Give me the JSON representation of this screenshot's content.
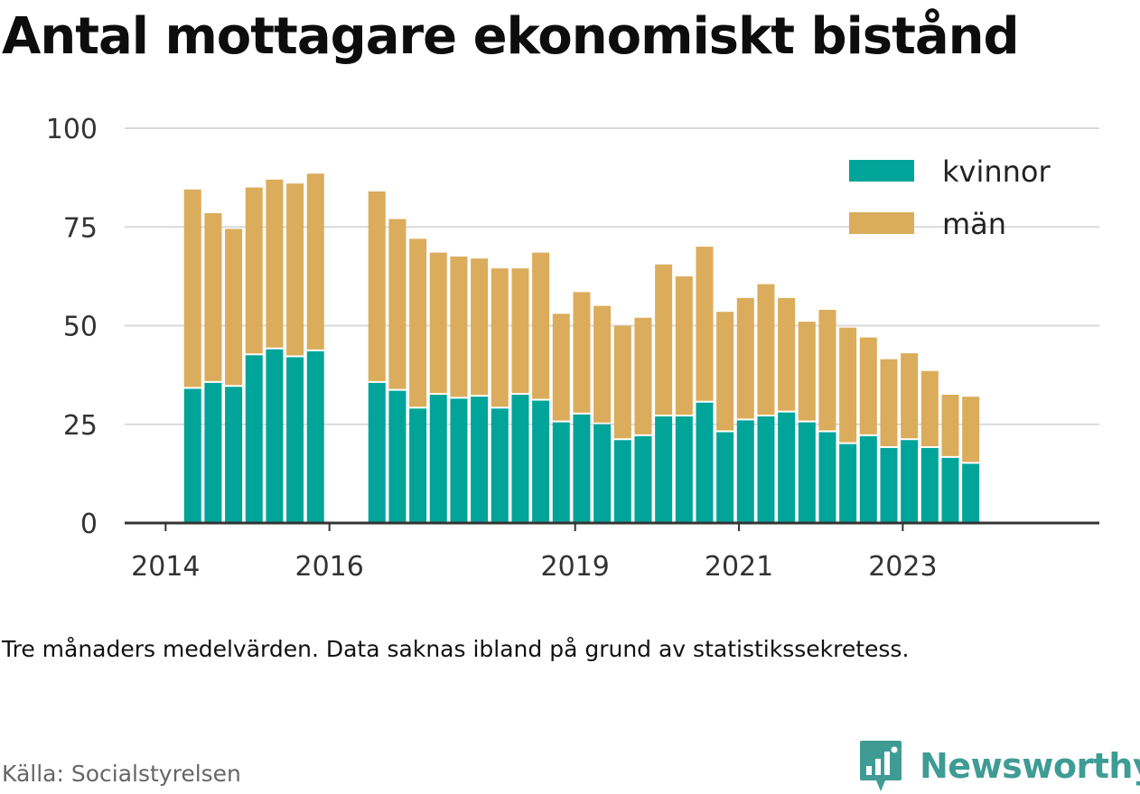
{
  "chart_data": {
    "type": "bar",
    "stacked": true,
    "title": "Antal mottagare ekonomiskt bistånd",
    "note": "Tre månaders medelvärden. Data saknas ibland på grund av statistikssekretess.",
    "source": "Källa: Socialstyrelsen",
    "ylim": [
      0,
      100
    ],
    "yticks": [
      0,
      25,
      50,
      75,
      100
    ],
    "xticks": [
      {
        "label": "2014",
        "x": 2014.0
      },
      {
        "label": "2016",
        "x": 2016.0
      },
      {
        "label": "2019",
        "x": 2019.0
      },
      {
        "label": "2021",
        "x": 2021.0
      },
      {
        "label": "2023",
        "x": 2023.0
      }
    ],
    "xlim": [
      2013.5,
      2025.4
    ],
    "grid": true,
    "legend_position": "top-right",
    "x": [
      2014.33,
      2014.58,
      2014.83,
      2015.08,
      2015.33,
      2015.58,
      2015.83,
      2016.58,
      2016.83,
      2017.08,
      2017.33,
      2017.58,
      2017.83,
      2018.08,
      2018.33,
      2018.58,
      2018.83,
      2019.08,
      2019.33,
      2019.58,
      2019.83,
      2020.08,
      2020.33,
      2020.58,
      2020.83,
      2021.08,
      2021.33,
      2021.58,
      2021.83,
      2022.08,
      2022.33,
      2022.58,
      2022.83,
      2023.08,
      2023.33,
      2023.58,
      2023.83
    ],
    "series": [
      {
        "name": "kvinnor",
        "color": "#00a499",
        "values": [
          34,
          35.5,
          34.5,
          42.5,
          44,
          42,
          43.5,
          35.5,
          33.5,
          29,
          32.5,
          31.5,
          32,
          29,
          32.5,
          31,
          25.5,
          27.5,
          25,
          21,
          22,
          27,
          27,
          30.5,
          23,
          26,
          27,
          28,
          25.5,
          23,
          20,
          22,
          19,
          21,
          19,
          16.5,
          15
        ]
      },
      {
        "name": "män",
        "color": "#dbac5b",
        "values": [
          50.5,
          43,
          40,
          42.5,
          43,
          44,
          45,
          48.5,
          43.5,
          43,
          36,
          36,
          35,
          35.5,
          32,
          37.5,
          27.5,
          31,
          30,
          29,
          30,
          38.5,
          35.5,
          39.5,
          30.5,
          31,
          33.5,
          29,
          25.5,
          31,
          29.5,
          25,
          22.5,
          22,
          19.5,
          16,
          17
        ]
      }
    ]
  },
  "brand": {
    "name": "Newsworthy",
    "icon": "chart-bubble-logo",
    "color": "#3f9c95"
  }
}
